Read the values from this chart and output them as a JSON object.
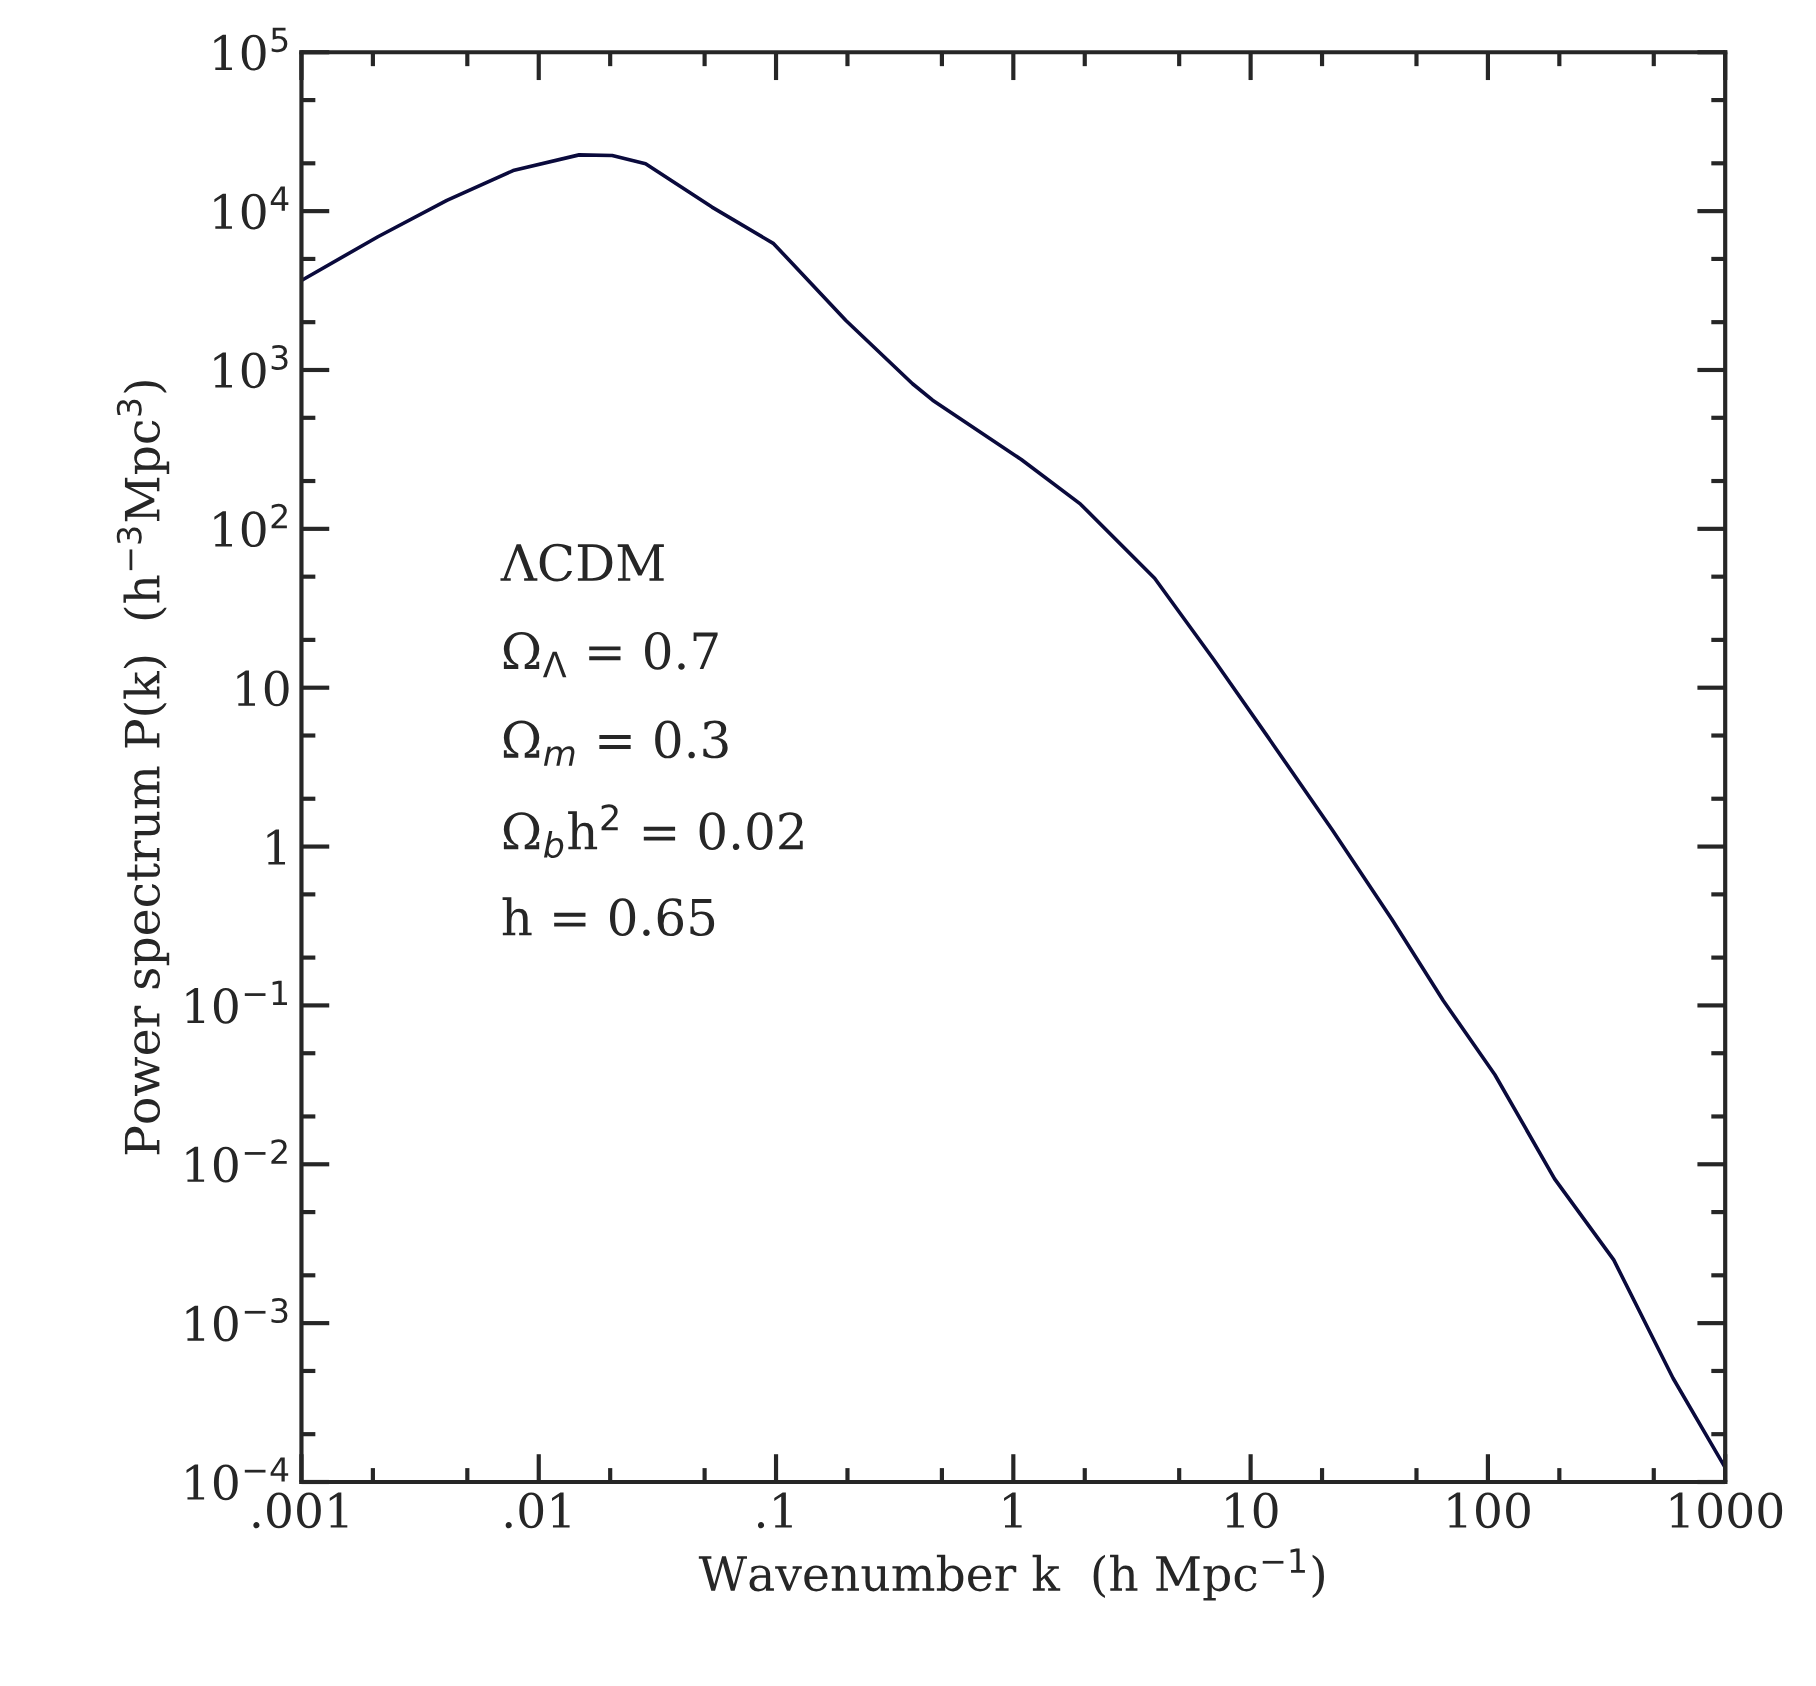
{
  "chart_data": {
    "type": "line",
    "xlabel": "Wavenumber k  (h Mpc$^{−1}$)",
    "ylabel": "Power spectrum P(k)  (h$^{−3}$Mpc$^{3}$)",
    "log": "xy",
    "grid": false,
    "marker": "none",
    "line_style": "solid",
    "xlim": [
      0.001,
      1000
    ],
    "ylim": [
      0.0001,
      100000
    ],
    "xticks": [
      {
        "value": 0.001,
        "label": ".001"
      },
      {
        "value": 0.01,
        "label": ".01"
      },
      {
        "value": 0.1,
        "label": ".1"
      },
      1,
      10,
      100,
      1000
    ],
    "yticks": [
      {
        "value": 0.0001,
        "label": "10$^{−4}$"
      },
      {
        "value": 0.001,
        "label": "10$^{−3}$"
      },
      {
        "value": 0.01,
        "label": "10$^{−2}$"
      },
      {
        "value": 0.1,
        "label": "10$^{−1}$"
      },
      1,
      10,
      {
        "value": 100,
        "label": "10$^{2}$"
      },
      {
        "value": 1000,
        "label": "10$^{3}$"
      },
      {
        "value": 10000,
        "label": "10$^{4}$"
      },
      {
        "value": 100000,
        "label": "10$^{5}$"
      }
    ],
    "annotations": [
      "ΛCDM",
      "Ω$_{Λ}$ = 0.7",
      "Ω$_{m}$ = 0.3",
      "Ω$_{b}$h$^{2}$ = 0.02",
      "h = 0.65"
    ],
    "series": [
      {
        "color": "#0a0a3c",
        "x": [
          0.001,
          0.0021,
          0.0041,
          0.0078,
          0.0148,
          0.0204,
          0.0282,
          0.0537,
          0.0977,
          0.197,
          0.376,
          0.457,
          1.08,
          1.92,
          3.94,
          7.0,
          11.6,
          22.1,
          39.3,
          64.9,
          107,
          191,
          339,
          603,
          1000
        ],
        "values": [
          3660,
          6900,
          11700,
          18000,
          22600,
          22400,
          19900,
          10600,
          6240,
          2050,
          819,
          646,
          273,
          143,
          48.9,
          15,
          5.1,
          1.27,
          0.35,
          0.107,
          0.0366,
          0.0081,
          0.0025,
          0.00045,
          0.000123
        ]
      }
    ]
  }
}
